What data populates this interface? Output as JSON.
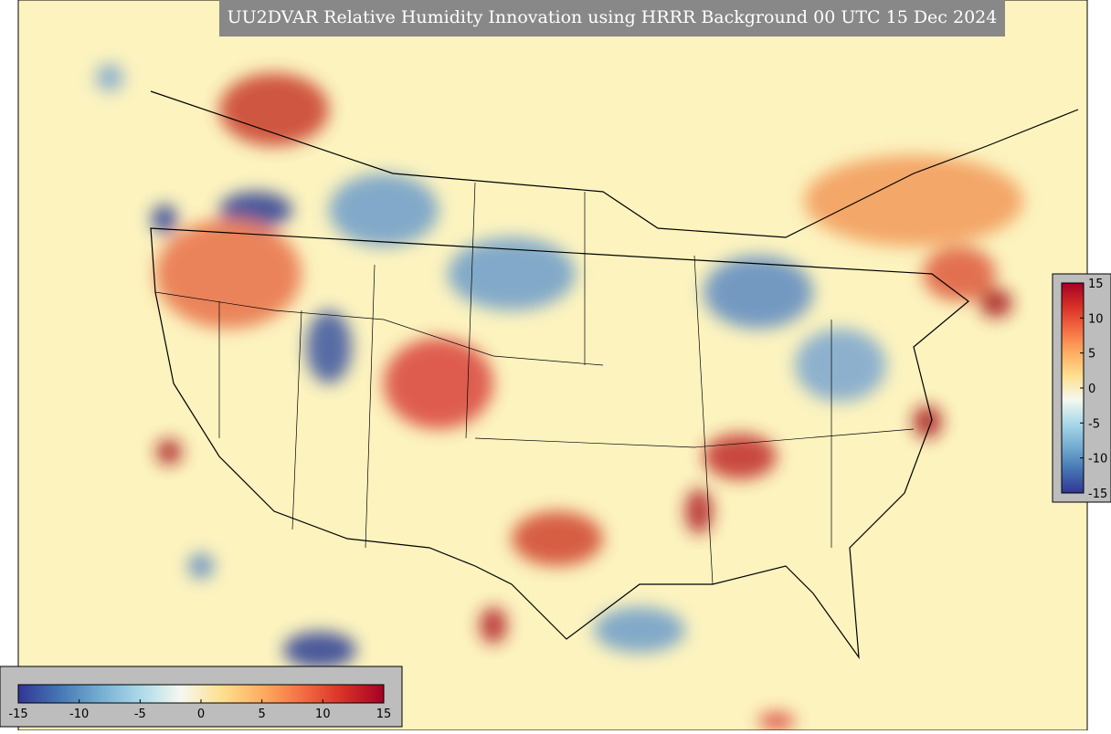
{
  "title": "UU2DVAR Relative Humidity Innovation using HRRR Background 00 UTC 15 Dec 2024",
  "horizontal_colorbar": {
    "lim": [
      -15,
      15
    ],
    "ticks": [
      -15,
      -10,
      -5,
      0,
      5,
      10,
      15
    ],
    "colors": [
      "#313695",
      "#4575b4",
      "#74add1",
      "#abd9e9",
      "#f5f8f0",
      "#fee090",
      "#fdae61",
      "#f46d43",
      "#d73027",
      "#a50026"
    ]
  },
  "vertical_colorbar": {
    "lim": [
      -15,
      15
    ],
    "ticks": [
      -15,
      -10,
      -5,
      0,
      5,
      10,
      15
    ],
    "colors": [
      "#313695",
      "#4575b4",
      "#74add1",
      "#abd9e9",
      "#f5f8f0",
      "#fee090",
      "#fdae61",
      "#f46d43",
      "#d73027",
      "#a50026"
    ]
  }
}
